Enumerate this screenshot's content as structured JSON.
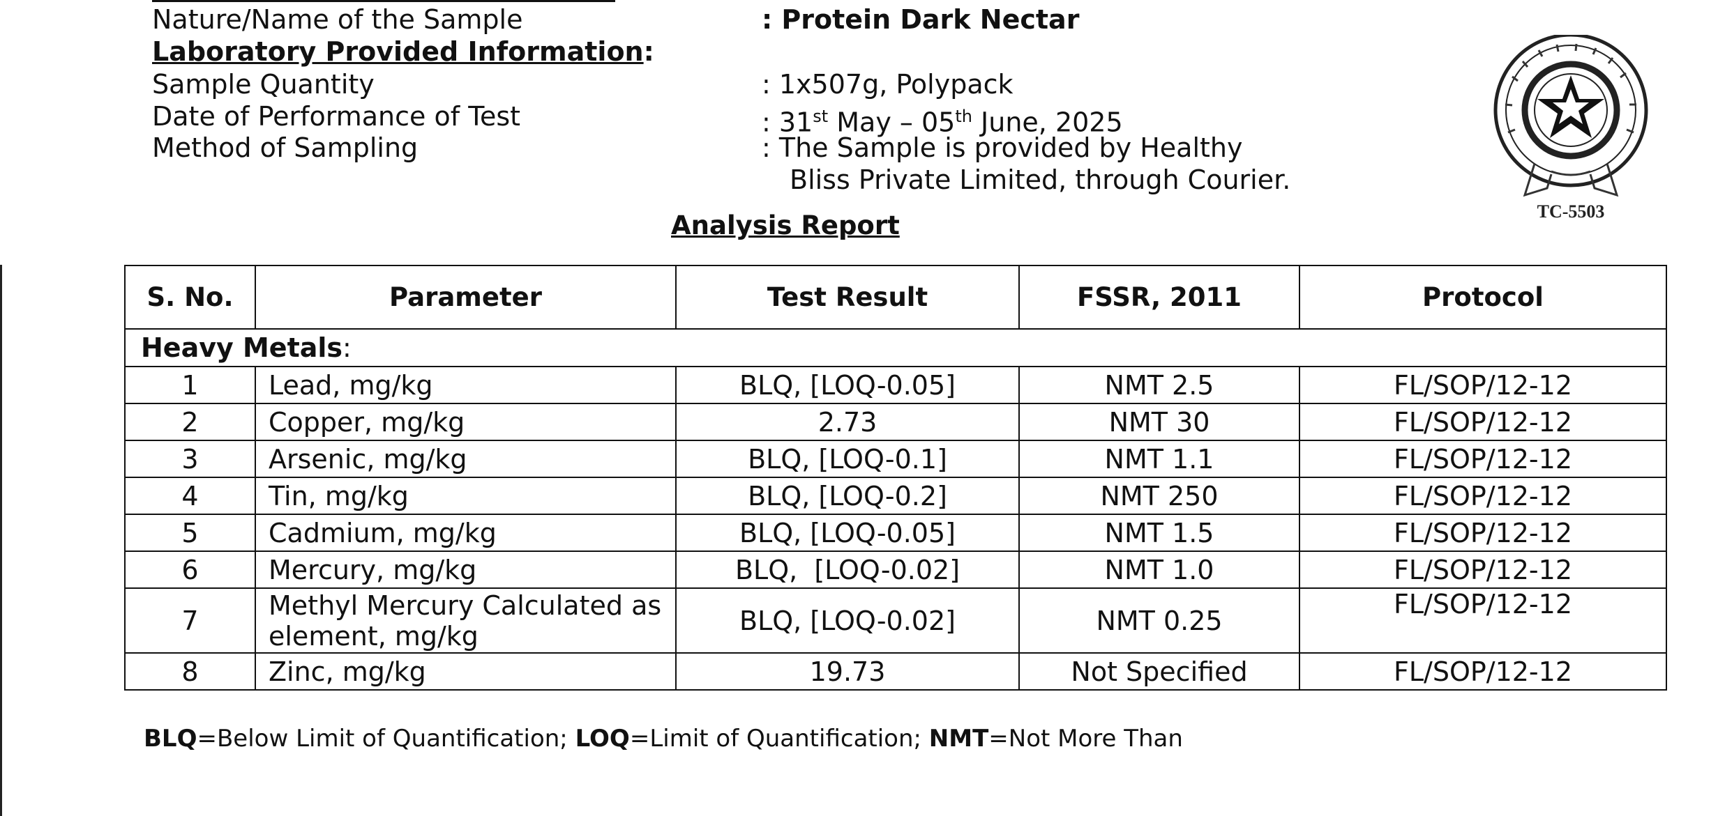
{
  "header": {
    "sample_name_label": "Nature/Name of the Sample",
    "sample_name_value": ": Protein Dark Nectar",
    "lab_info_heading": "Laboratory Provided Information",
    "lab_info_colon": ":",
    "quantity_label": "Sample Quantity",
    "quantity_value": ": 1x507g, Polypack",
    "date_label": "Date of Performance of Test",
    "date_value_prefix": ": 31",
    "date_sup1": "st",
    "date_value_mid": " May – 05",
    "date_sup2": "th",
    "date_value_suffix": " June, 2025",
    "method_label": "Method of Sampling",
    "method_value_line1": ": The Sample is provided by Healthy",
    "method_value_line2": "Bliss Private Limited, through Courier."
  },
  "seal": {
    "code": "TC-5503",
    "icon": "accreditation-seal-icon"
  },
  "report": {
    "title": "Analysis Report",
    "columns": [
      "S. No.",
      "Parameter",
      "Test Result",
      "FSSR, 2011",
      "Protocol"
    ],
    "section_label": "Heavy Metals",
    "section_colon": ":",
    "rows": [
      {
        "sno": "1",
        "parameter": "Lead, mg/kg",
        "result": "BLQ, [LOQ-0.05]",
        "fssr": "NMT 2.5",
        "protocol": "FL/SOP/12-12"
      },
      {
        "sno": "2",
        "parameter": "Copper, mg/kg",
        "result": "2.73",
        "fssr": "NMT 30",
        "protocol": "FL/SOP/12-12"
      },
      {
        "sno": "3",
        "parameter": "Arsenic, mg/kg",
        "result": "BLQ, [LOQ-0.1]",
        "fssr": "NMT 1.1",
        "protocol": "FL/SOP/12-12"
      },
      {
        "sno": "4",
        "parameter": "Tin, mg/kg",
        "result": "BLQ, [LOQ-0.2]",
        "fssr": "NMT 250",
        "protocol": "FL/SOP/12-12"
      },
      {
        "sno": "5",
        "parameter": "Cadmium, mg/kg",
        "result": "BLQ, [LOQ-0.05]",
        "fssr": "NMT 1.5",
        "protocol": "FL/SOP/12-12"
      },
      {
        "sno": "6",
        "parameter": "Mercury, mg/kg",
        "result": "BLQ,  [LOQ-0.02]",
        "fssr": "NMT 1.0",
        "protocol": "FL/SOP/12-12"
      },
      {
        "sno": "7",
        "parameter_line1": "Methyl Mercury Calculated as",
        "parameter_line2": "element, mg/kg",
        "result": "BLQ, [LOQ-0.02]",
        "fssr": "NMT 0.25",
        "protocol": "FL/SOP/12-12"
      },
      {
        "sno": "8",
        "parameter": "Zinc, mg/kg",
        "result": "19.73",
        "fssr": "Not Specified",
        "protocol": "FL/SOP/12-12"
      }
    ]
  },
  "legend": {
    "blq_abbr": "BLQ",
    "blq_text": "=Below Limit of Quantification; ",
    "loq_abbr": "LOQ",
    "loq_text": "=Limit of Quantification; ",
    "nmt_abbr": "NMT",
    "nmt_text": "=Not More Than"
  }
}
